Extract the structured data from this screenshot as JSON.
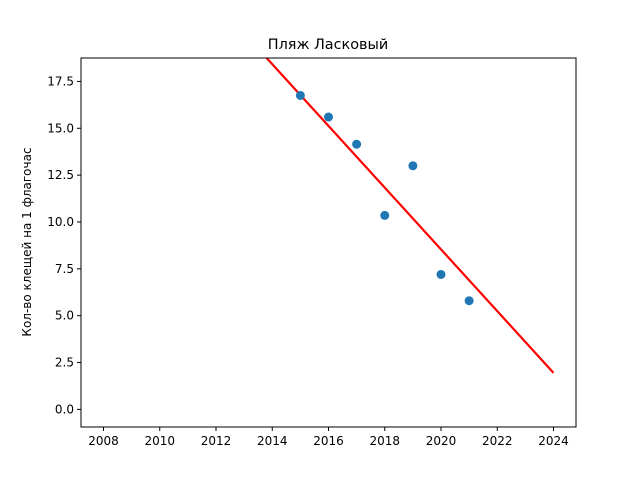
{
  "chart_data": {
    "type": "scatter",
    "title": "Пляж Ласковый",
    "xlabel": "",
    "ylabel": "Кол-во клещей на 1 флагочас",
    "xlim": [
      2007.2,
      2024.8
    ],
    "ylim": [
      -0.94,
      18.75
    ],
    "x_ticks": [
      2008,
      2010,
      2012,
      2014,
      2016,
      2018,
      2020,
      2022,
      2024
    ],
    "y_ticks": [
      0.0,
      2.5,
      5.0,
      7.5,
      10.0,
      12.5,
      15.0,
      17.5
    ],
    "x_tick_labels": [
      "2008",
      "2010",
      "2012",
      "2014",
      "2016",
      "2018",
      "2020",
      "2022",
      "2024"
    ],
    "y_tick_labels": [
      "0.0",
      "2.5",
      "5.0",
      "7.5",
      "10.0",
      "12.5",
      "15.0",
      "17.5"
    ],
    "grid": false,
    "points": {
      "x": [
        2015,
        2016,
        2017,
        2018,
        2019,
        2020,
        2021
      ],
      "y": [
        16.75,
        15.6,
        14.15,
        10.35,
        13.0,
        7.2,
        5.8
      ],
      "color": "#1f77b4"
    },
    "trend_line": {
      "x": [
        2013.8,
        2024
      ],
      "y": [
        18.75,
        1.95
      ],
      "color": "#ff0000"
    }
  }
}
